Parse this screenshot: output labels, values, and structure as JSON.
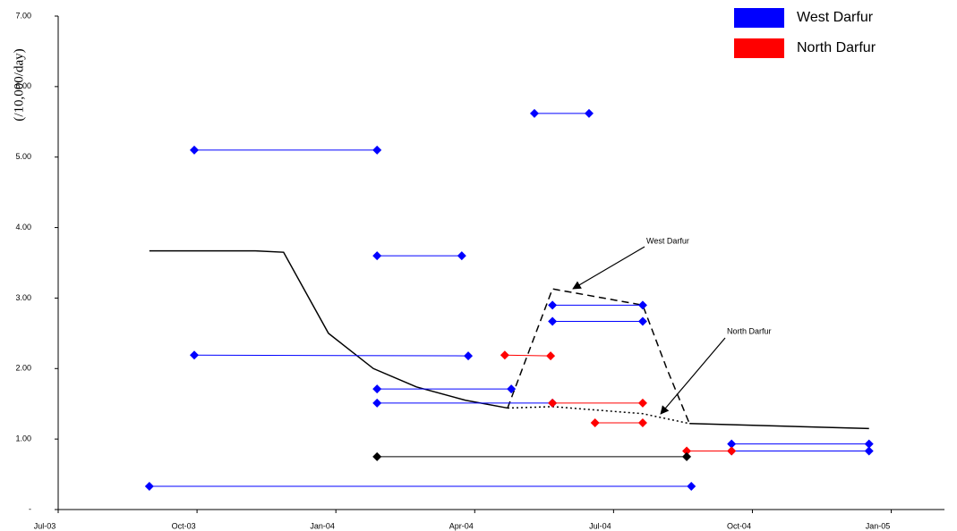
{
  "chart_data": {
    "type": "range-segments",
    "y_label": "(/10,000/day)",
    "xlim": [
      0,
      19.15
    ],
    "xticks": [
      {
        "value": 0,
        "label": "Jul-03"
      },
      {
        "value": 3,
        "label": "Oct-03"
      },
      {
        "value": 6,
        "label": "Jan-04"
      },
      {
        "value": 9,
        "label": "Apr-04"
      },
      {
        "value": 12,
        "label": "Jul-04"
      },
      {
        "value": 15,
        "label": "Oct-04"
      },
      {
        "value": 18,
        "label": "Jan-05"
      }
    ],
    "ylim": [
      0,
      7
    ],
    "yticks": [
      {
        "value": 0,
        "label": "-"
      },
      {
        "value": 1,
        "label": "1.00"
      },
      {
        "value": 2,
        "label": "2.00"
      },
      {
        "value": 3,
        "label": "3.00"
      },
      {
        "value": 4,
        "label": "4.00"
      },
      {
        "value": 5,
        "label": "5.00"
      },
      {
        "value": 6,
        "label": "6.00"
      },
      {
        "value": 7,
        "label": "7.00"
      }
    ],
    "legend_position": "upper right",
    "series": [
      {
        "name": "West Darfur",
        "color": "#0000ff",
        "segments": [
          {
            "x": [
              2.94,
              6.89
            ],
            "values": [
              5.1,
              5.1
            ]
          },
          {
            "x": [
              10.29,
              11.47
            ],
            "values": [
              5.62,
              5.62
            ]
          },
          {
            "x": [
              6.89,
              8.72
            ],
            "values": [
              3.6,
              3.6
            ]
          },
          {
            "x": [
              2.94,
              8.86
            ],
            "values": [
              2.19,
              2.18
            ]
          },
          {
            "x": [
              10.68,
              12.63
            ],
            "values": [
              2.9,
              2.9
            ]
          },
          {
            "x": [
              10.68,
              12.63
            ],
            "values": [
              2.67,
              2.67
            ]
          },
          {
            "x": [
              6.89,
              9.79
            ],
            "values": [
              1.71,
              1.71
            ]
          },
          {
            "x": [
              6.89,
              10.68
            ],
            "values": [
              1.51,
              1.51
            ]
          },
          {
            "x": [
              1.97,
              13.68
            ],
            "values": [
              0.33,
              0.33
            ]
          },
          {
            "x": [
              14.55,
              17.52
            ],
            "values": [
              0.93,
              0.93
            ]
          },
          {
            "x": [
              14.55,
              17.52
            ],
            "values": [
              0.83,
              0.83
            ]
          }
        ]
      },
      {
        "name": "North Darfur",
        "color": "#ff0000",
        "segments": [
          {
            "x": [
              9.65,
              10.64
            ],
            "values": [
              2.19,
              2.18
            ]
          },
          {
            "x": [
              10.68,
              12.63
            ],
            "values": [
              1.51,
              1.51
            ]
          },
          {
            "x": [
              11.6,
              12.63
            ],
            "values": [
              1.23,
              1.23
            ]
          },
          {
            "x": [
              13.58,
              14.55
            ],
            "values": [
              0.83,
              0.83
            ]
          }
        ]
      },
      {
        "color": "#000000",
        "legend": false,
        "segments": [
          {
            "x": [
              6.89,
              13.58
            ],
            "values": [
              0.75,
              0.75
            ]
          }
        ]
      }
    ],
    "lines": [
      {
        "style": "solid",
        "x": [
          1.97,
          4.26,
          4.87,
          5.84,
          6.81,
          7.74,
          8.8,
          9.71
        ],
        "values": [
          3.67,
          3.67,
          3.65,
          2.5,
          2.0,
          1.74,
          1.55,
          1.44
        ]
      },
      {
        "style": "solid",
        "x": [
          13.64,
          17.52
        ],
        "values": [
          1.22,
          1.15
        ]
      },
      {
        "style": "dotted",
        "x": [
          9.71,
          10.68,
          12.63,
          13.64
        ],
        "values": [
          1.44,
          1.46,
          1.36,
          1.22
        ]
      },
      {
        "style": "dashed",
        "x": [
          9.71,
          10.68,
          12.63,
          13.15,
          13.64
        ],
        "values": [
          1.44,
          3.13,
          2.9,
          2.0,
          1.22
        ]
      }
    ],
    "annotations": [
      "West Darfur",
      "North Darfur"
    ]
  }
}
